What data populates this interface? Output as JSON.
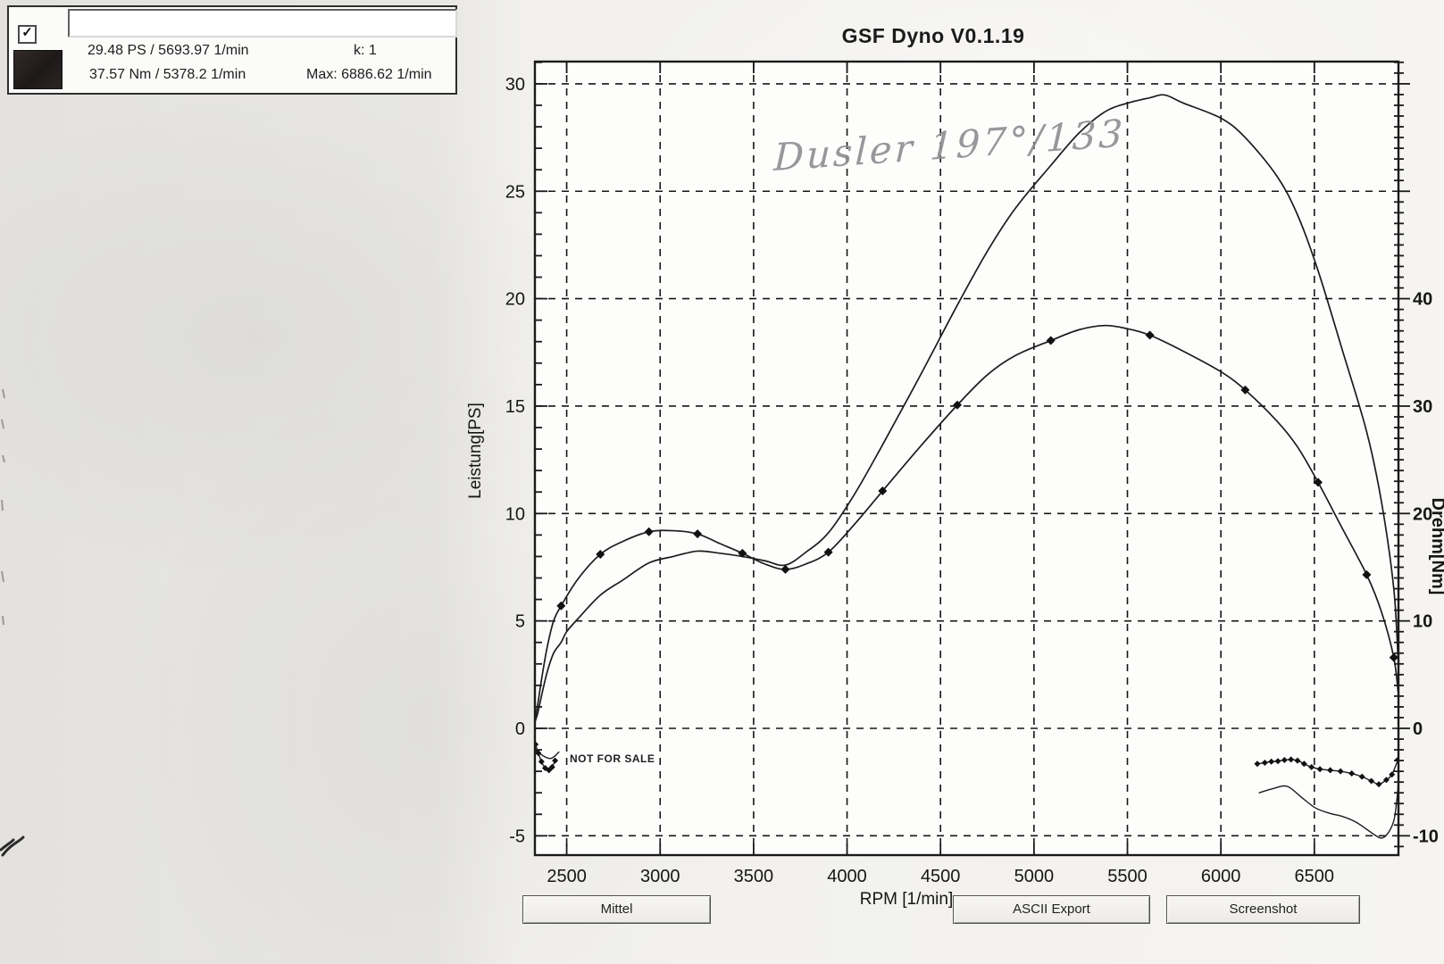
{
  "header": {
    "title": "GSF Dyno V0.1.19"
  },
  "info_panel": {
    "checkbox_checked": true,
    "checkmark_glyph": "✓",
    "run_name_value": "",
    "swatch_color": "#241e1e",
    "stats": {
      "power_line": "29.48 PS / 5693.97 1/min",
      "k_line": "k: 1",
      "torque_line": "37.57 Nm / 5378.2 1/min",
      "max_line": "Max: 6886.62 1/min"
    }
  },
  "annotations": {
    "handwritten": "Dusler 197°/133",
    "watermark": "NOT FOR SALE"
  },
  "buttons": [
    {
      "label": "Mittel"
    },
    {
      "label": "ASCII Export"
    },
    {
      "label": "Screenshot"
    }
  ],
  "colors": {
    "curve": "#1c1c1c",
    "grid": "#161616",
    "paper": "#f4f3f0",
    "plot_background": "#fdfdfc",
    "pencil_annotation": "#8d8d92"
  },
  "chart_data": {
    "type": "line",
    "title": "GSF Dyno V0.1.19",
    "xlabel": "RPM [1/min]",
    "ylabel_left": "Leistung[PS]",
    "ylabel_right": "Drehm[Nm]",
    "x_range": [
      2330,
      6950
    ],
    "ylim_left": [
      -5.9,
      31.0
    ],
    "ylim_right": [
      -11.8,
      62.0
    ],
    "x_ticks": [
      2500,
      3000,
      3500,
      4000,
      4500,
      5000,
      5500,
      6000,
      6500
    ],
    "y_ticks_left": [
      30,
      25,
      20,
      15,
      10,
      5,
      0,
      -5
    ],
    "y_ticks_right": [
      40,
      30,
      20,
      10,
      0,
      -10
    ],
    "grid": "dashed",
    "legend": "none",
    "peaks": {
      "power_peak": {
        "value_ps": 29.48,
        "rpm": 5693.97
      },
      "torque_peak": {
        "value_nm": 37.57,
        "rpm": 5378.2
      },
      "max_rpm": 6886.62
    },
    "series": [
      {
        "name": "power",
        "axis": "left",
        "unit": "PS",
        "line_width": 1.7,
        "markers": "none",
        "points": [
          [
            2330,
            0.3
          ],
          [
            2345,
            0.7
          ],
          [
            2365,
            1.5
          ],
          [
            2395,
            2.6
          ],
          [
            2430,
            3.5
          ],
          [
            2470,
            4.0
          ],
          [
            2500,
            4.5
          ],
          [
            2560,
            5.1
          ],
          [
            2680,
            6.2
          ],
          [
            2800,
            6.9
          ],
          [
            2940,
            7.7
          ],
          [
            3070,
            8.0
          ],
          [
            3200,
            8.25
          ],
          [
            3320,
            8.15
          ],
          [
            3440,
            8.0
          ],
          [
            3560,
            7.8
          ],
          [
            3670,
            7.6
          ],
          [
            3780,
            8.2
          ],
          [
            3900,
            9.1
          ],
          [
            4040,
            10.9
          ],
          [
            4190,
            13.2
          ],
          [
            4390,
            16.4
          ],
          [
            4590,
            19.7
          ],
          [
            4750,
            22.2
          ],
          [
            4900,
            24.2
          ],
          [
            5090,
            26.2
          ],
          [
            5240,
            27.7
          ],
          [
            5380,
            28.7
          ],
          [
            5500,
            29.1
          ],
          [
            5620,
            29.35
          ],
          [
            5700,
            29.48
          ],
          [
            5800,
            29.1
          ],
          [
            6000,
            28.4
          ],
          [
            6130,
            27.5
          ],
          [
            6300,
            25.7
          ],
          [
            6410,
            23.9
          ],
          [
            6520,
            21.3
          ],
          [
            6650,
            17.6
          ],
          [
            6780,
            13.8
          ],
          [
            6860,
            10.5
          ],
          [
            6925,
            6.5
          ],
          [
            6948,
            3.2
          ]
        ]
      },
      {
        "name": "torque",
        "axis": "right",
        "unit": "Nm",
        "line_width": 1.7,
        "markers": "list",
        "marker_size": 5,
        "marker_points": [
          [
            2470,
            11.4
          ],
          [
            2680,
            16.2
          ],
          [
            2940,
            18.3
          ],
          [
            3200,
            18.1
          ],
          [
            3440,
            16.3
          ],
          [
            3670,
            14.8
          ],
          [
            3900,
            16.4
          ],
          [
            4190,
            22.1
          ],
          [
            4590,
            30.1
          ],
          [
            5090,
            36.1
          ],
          [
            5620,
            36.6
          ],
          [
            6130,
            31.5
          ],
          [
            6520,
            22.9
          ],
          [
            6780,
            14.3
          ],
          [
            6925,
            6.6
          ]
        ],
        "points": [
          [
            2330,
            0.8
          ],
          [
            2345,
            2.2
          ],
          [
            2365,
            4.5
          ],
          [
            2395,
            7.5
          ],
          [
            2430,
            10.0
          ],
          [
            2470,
            11.4
          ],
          [
            2560,
            13.9
          ],
          [
            2680,
            16.2
          ],
          [
            2800,
            17.4
          ],
          [
            2940,
            18.3
          ],
          [
            3070,
            18.4
          ],
          [
            3200,
            18.1
          ],
          [
            3320,
            17.2
          ],
          [
            3440,
            16.3
          ],
          [
            3560,
            15.3
          ],
          [
            3670,
            14.8
          ],
          [
            3780,
            15.3
          ],
          [
            3900,
            16.4
          ],
          [
            4040,
            19.0
          ],
          [
            4190,
            22.1
          ],
          [
            4390,
            26.2
          ],
          [
            4590,
            30.1
          ],
          [
            4750,
            32.9
          ],
          [
            4900,
            34.7
          ],
          [
            5090,
            36.1
          ],
          [
            5240,
            37.1
          ],
          [
            5380,
            37.5
          ],
          [
            5500,
            37.2
          ],
          [
            5620,
            36.6
          ],
          [
            5800,
            35.1
          ],
          [
            6000,
            33.2
          ],
          [
            6130,
            31.5
          ],
          [
            6300,
            28.6
          ],
          [
            6410,
            26.2
          ],
          [
            6520,
            22.9
          ],
          [
            6650,
            18.6
          ],
          [
            6780,
            14.3
          ],
          [
            6860,
            10.8
          ],
          [
            6925,
            6.6
          ],
          [
            6948,
            3.4
          ]
        ]
      },
      {
        "name": "drag-power-start",
        "axis": "left",
        "unit": "PS",
        "line_width": 1.4,
        "markers": "none",
        "points": [
          [
            2336,
            -1.05
          ],
          [
            2360,
            -1.2
          ],
          [
            2390,
            -1.35
          ],
          [
            2415,
            -1.4
          ],
          [
            2438,
            -1.28
          ],
          [
            2458,
            -1.1
          ]
        ]
      },
      {
        "name": "drag-torque-start",
        "axis": "right",
        "unit": "Nm",
        "line_width": 1.4,
        "markers": "all",
        "marker_size": 3.5,
        "points": [
          [
            2333,
            -1.5
          ],
          [
            2348,
            -2.3
          ],
          [
            2365,
            -3.1
          ],
          [
            2385,
            -3.7
          ],
          [
            2405,
            -3.9
          ],
          [
            2422,
            -3.6
          ],
          [
            2438,
            -3.0
          ]
        ]
      },
      {
        "name": "drag-power-end",
        "axis": "left",
        "unit": "PS",
        "line_width": 1.4,
        "markers": "none",
        "points": [
          [
            6205,
            -3.0
          ],
          [
            6280,
            -2.8
          ],
          [
            6355,
            -2.7
          ],
          [
            6430,
            -3.2
          ],
          [
            6505,
            -3.7
          ],
          [
            6580,
            -3.95
          ],
          [
            6650,
            -4.1
          ],
          [
            6720,
            -4.35
          ],
          [
            6780,
            -4.7
          ],
          [
            6830,
            -5.0
          ],
          [
            6865,
            -5.1
          ],
          [
            6900,
            -4.8
          ],
          [
            6928,
            -4.2
          ],
          [
            6945,
            -3.0
          ],
          [
            6952,
            -2.0
          ]
        ]
      },
      {
        "name": "drag-torque-end",
        "axis": "right",
        "unit": "Nm",
        "line_width": 1.4,
        "markers": "all",
        "marker_size": 3.5,
        "points": [
          [
            6195,
            -3.3
          ],
          [
            6235,
            -3.2
          ],
          [
            6270,
            -3.1
          ],
          [
            6305,
            -3.05
          ],
          [
            6340,
            -2.95
          ],
          [
            6375,
            -2.9
          ],
          [
            6410,
            -3.0
          ],
          [
            6445,
            -3.3
          ],
          [
            6485,
            -3.6
          ],
          [
            6530,
            -3.8
          ],
          [
            6585,
            -3.9
          ],
          [
            6640,
            -4.0
          ],
          [
            6700,
            -4.2
          ],
          [
            6755,
            -4.5
          ],
          [
            6805,
            -4.9
          ],
          [
            6845,
            -5.2
          ],
          [
            6885,
            -4.8
          ],
          [
            6915,
            -4.3
          ],
          [
            6948,
            -2.9
          ]
        ]
      }
    ]
  }
}
